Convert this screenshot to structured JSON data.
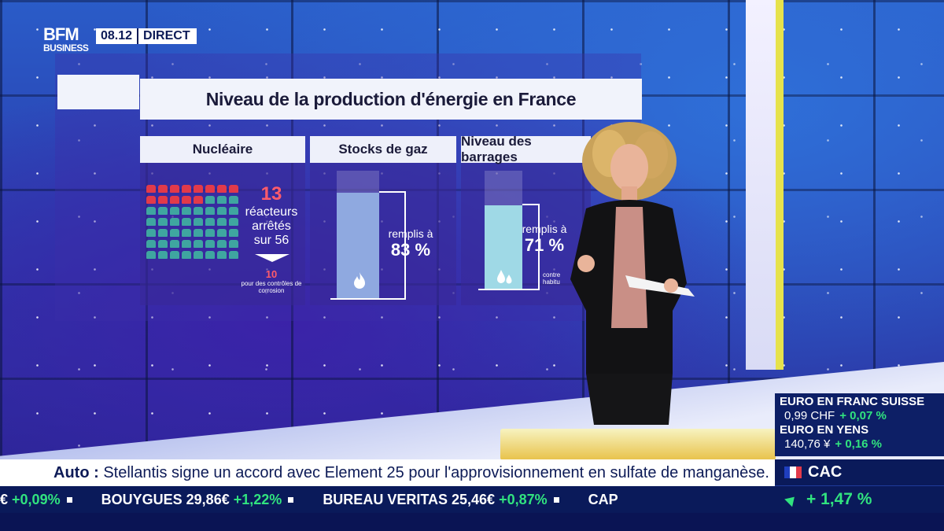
{
  "channel": {
    "logo_top": "BFM",
    "logo_bottom": "BUSINESS",
    "time": "08.12",
    "live_label": "DIRECT"
  },
  "infographic": {
    "title": "Niveau de la production d'énergie en France",
    "nuclear": {
      "header": "Nucléaire",
      "stopped_count": "13",
      "line1": "réacteurs",
      "line2": "arrêtés",
      "line3": "sur 56",
      "sub_count": "10",
      "sub_text": "pour des contrôles de corrosion",
      "reactors_total": 56,
      "reactors_stopped": 13
    },
    "gas": {
      "header": "Stocks de gaz",
      "label": "remplis à",
      "percent": "83 %",
      "fill_fraction": 0.83,
      "icon": "flame-icon"
    },
    "dams": {
      "header": "Niveau des barrages",
      "label": "remplis à",
      "percent": "71 %",
      "note_line1": "contre",
      "note_line2": "habitu",
      "fill_fraction": 0.71,
      "icon": "water-drop-icon"
    }
  },
  "markets": {
    "fx1_title": "EURO EN FRANC SUISSE",
    "fx1_value": "0,99 CHF",
    "fx1_change": "+ 0,07 %",
    "fx2_title": "EURO EN YENS",
    "fx2_value": "140,76 ¥",
    "fx2_change": "+ 0,16 %",
    "index_name": "CAC",
    "index_change": "+ 1,47 %"
  },
  "news": {
    "tag": "Auto :",
    "text": "Stellantis signe un accord avec Element 25 pour l'approvisionnement en sulfate de manganèse."
  },
  "tape": [
    {
      "name": "€",
      "value": "",
      "change": "+0,09%"
    },
    {
      "name": "BOUYGUES",
      "value": "29,86€",
      "change": "+1,22%"
    },
    {
      "name": "BUREAU VERITAS",
      "value": "25,46€",
      "change": "+0,87%"
    },
    {
      "name": "CAP",
      "value": "",
      "change": ""
    }
  ],
  "colors": {
    "accent_green": "#31e37f",
    "alert_red": "#ff5b6b",
    "navy": "#0a1a5a"
  }
}
